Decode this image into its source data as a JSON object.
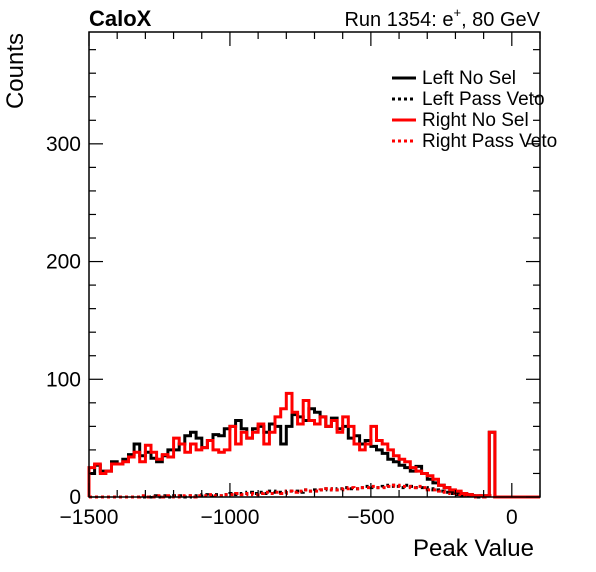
{
  "header": {
    "left": "CaloX",
    "right_prefix": "Run 1354: e",
    "right_sup": "+",
    "right_suffix": ", 80 GeV"
  },
  "chart_data": {
    "type": "line",
    "title": "",
    "xlabel": "Peak Value",
    "ylabel": "Counts",
    "xlim": [
      -1500,
      100
    ],
    "ylim": [
      0,
      395
    ],
    "xticks": [
      -1500,
      -1000,
      -500,
      0
    ],
    "xtick_labels": [
      "−1500",
      "−1000",
      "−500",
      "0"
    ],
    "yticks": [
      0,
      100,
      200,
      300
    ],
    "ytick_labels": [
      "0",
      "100",
      "200",
      "300"
    ],
    "bin_width": 20,
    "x": [
      -1490,
      -1470,
      -1450,
      -1430,
      -1410,
      -1390,
      -1370,
      -1350,
      -1330,
      -1310,
      -1290,
      -1270,
      -1250,
      -1230,
      -1210,
      -1190,
      -1170,
      -1150,
      -1130,
      -1110,
      -1090,
      -1070,
      -1050,
      -1030,
      -1010,
      -990,
      -970,
      -950,
      -930,
      -910,
      -890,
      -870,
      -850,
      -830,
      -810,
      -790,
      -770,
      -750,
      -730,
      -710,
      -690,
      -670,
      -650,
      -630,
      -610,
      -590,
      -570,
      -550,
      -530,
      -510,
      -490,
      -470,
      -450,
      -430,
      -410,
      -390,
      -370,
      -350,
      -330,
      -310,
      -290,
      -270,
      -250,
      -230,
      -210,
      -190,
      -170,
      -150,
      -130,
      -110,
      -90,
      -70,
      -50,
      -30,
      -10,
      10,
      30,
      50,
      70,
      90
    ],
    "legend_position": "top-right",
    "series": [
      {
        "name": "Left No Sel",
        "color": "#000000",
        "style": "solid",
        "values": [
          20,
          27,
          22,
          22,
          30,
          28,
          32,
          36,
          45,
          35,
          38,
          33,
          30,
          35,
          40,
          40,
          45,
          52,
          55,
          50,
          42,
          48,
          53,
          52,
          58,
          60,
          65,
          58,
          50,
          58,
          60,
          55,
          62,
          60,
          45,
          60,
          70,
          68,
          65,
          75,
          72,
          68,
          60,
          67,
          58,
          60,
          50,
          52,
          45,
          48,
          43,
          40,
          37,
          32,
          30,
          27,
          25,
          22,
          26,
          20,
          15,
          12,
          10,
          8,
          5,
          4,
          3,
          2,
          1,
          1,
          1,
          55,
          0,
          0,
          0,
          0,
          0,
          0,
          0,
          0
        ]
      },
      {
        "name": "Left Pass Veto",
        "color": "#000000",
        "style": "dotted",
        "values": [
          0,
          0,
          0,
          0,
          0,
          0,
          0,
          0,
          0,
          0,
          0,
          1,
          0,
          1,
          0,
          1,
          1,
          0,
          1,
          1,
          2,
          1,
          2,
          1,
          2,
          3,
          2,
          3,
          4,
          3,
          4,
          3,
          5,
          4,
          4,
          5,
          5,
          4,
          6,
          5,
          6,
          6,
          7,
          6,
          7,
          8,
          7,
          7,
          8,
          9,
          8,
          8,
          9,
          10,
          9,
          8,
          10,
          9,
          8,
          8,
          7,
          6,
          5,
          4,
          3,
          2,
          1,
          1,
          1,
          0,
          0,
          1,
          0,
          0,
          0,
          0,
          0,
          0,
          0,
          0
        ]
      },
      {
        "name": "Right No Sel",
        "color": "#ff0000",
        "style": "solid",
        "values": [
          25,
          28,
          20,
          22,
          28,
          28,
          30,
          34,
          38,
          30,
          44,
          38,
          32,
          36,
          34,
          50,
          45,
          38,
          45,
          40,
          42,
          48,
          40,
          38,
          40,
          60,
          45,
          55,
          50,
          55,
          62,
          45,
          55,
          68,
          75,
          88,
          72,
          62,
          82,
          65,
          62,
          68,
          60,
          65,
          55,
          68,
          60,
          45,
          40,
          45,
          60,
          48,
          45,
          40,
          35,
          32,
          30,
          25,
          22,
          20,
          18,
          15,
          10,
          8,
          6,
          5,
          3,
          2,
          1,
          1,
          1,
          55,
          0,
          0,
          0,
          0,
          0,
          0,
          0,
          0
        ]
      },
      {
        "name": "Right Pass Veto",
        "color": "#ff0000",
        "style": "dotted",
        "values": [
          0,
          0,
          0,
          0,
          0,
          0,
          0,
          0,
          0,
          1,
          0,
          0,
          1,
          0,
          1,
          0,
          1,
          1,
          0,
          1,
          1,
          2,
          1,
          1,
          2,
          2,
          3,
          2,
          3,
          2,
          3,
          4,
          3,
          4,
          3,
          5,
          4,
          5,
          6,
          5,
          5,
          6,
          7,
          6,
          6,
          7,
          8,
          7,
          8,
          8,
          9,
          8,
          8,
          9,
          10,
          9,
          9,
          8,
          9,
          8,
          6,
          6,
          5,
          4,
          3,
          2,
          1,
          1,
          0,
          1,
          0,
          1,
          0,
          0,
          0,
          0,
          0,
          0,
          0,
          0
        ]
      }
    ]
  }
}
